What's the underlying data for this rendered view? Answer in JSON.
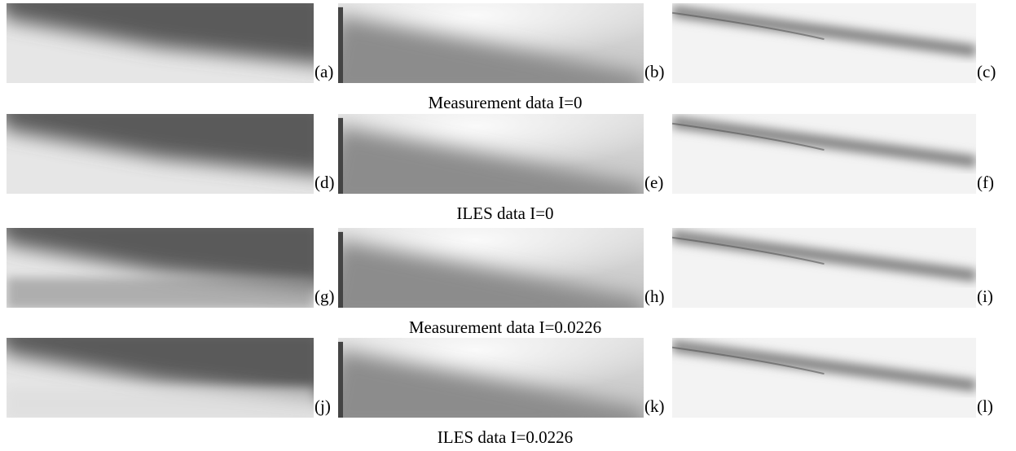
{
  "rows": [
    {
      "panels": [
        "(a)",
        "(b)",
        "(c)"
      ],
      "caption": "Measurement data I=0"
    },
    {
      "panels": [
        "(d)",
        "(e)",
        "(f)"
      ],
      "caption": "ILES data I=0"
    },
    {
      "panels": [
        "(g)",
        "(h)",
        "(i)"
      ],
      "caption": "Measurement data I=0.0226"
    },
    {
      "panels": [
        "(j)",
        "(k)",
        "(l)"
      ],
      "caption": "ILES data I=0.0226"
    }
  ]
}
